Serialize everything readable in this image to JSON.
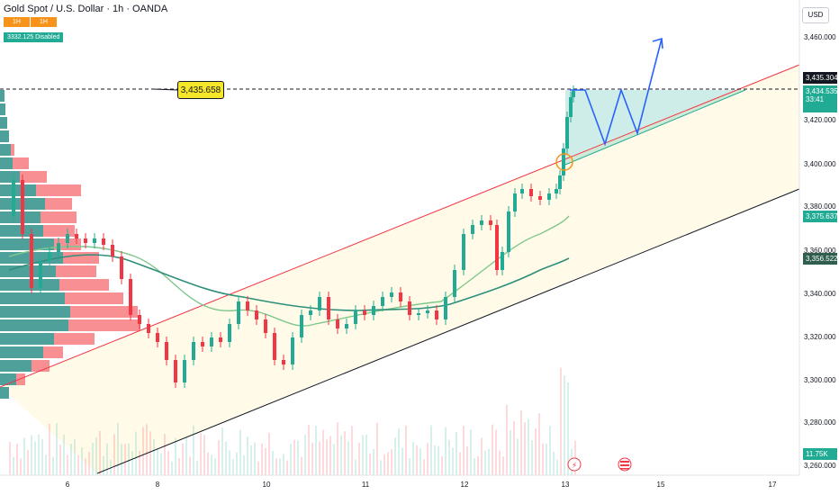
{
  "header": {
    "title": "Gold Spot / U.S. Dollar · 1h · OANDA",
    "badge_left": "1H",
    "badge_right": "1H",
    "info_line": "3332.125 Disabled"
  },
  "price_axis": {
    "currency": "USD",
    "labels": [
      "3,460.000",
      "3,420.000",
      "3,400.000",
      "3,380.000",
      "3,360.000",
      "3,340.000",
      "3,320.000",
      "3,300.000",
      "3,280.000",
      "3,260.000"
    ],
    "current_price": "3,435.304",
    "current_price_sub": "3,434.535",
    "countdown": "33:41",
    "tag_green": "3,375.637",
    "tag_dark": "3,356.522",
    "tag_volume": "11.75K",
    "colors": {
      "current": "#131722",
      "green": "#22ab94",
      "dark": "#2f5e4f",
      "volume": "#22ab94"
    }
  },
  "time_axis": {
    "labels": [
      "6",
      "8",
      "10",
      "11",
      "12",
      "13",
      "15",
      "17"
    ]
  },
  "annotations": {
    "target_label": "3,435.658"
  },
  "chart_data": {
    "type": "candlestick",
    "symbol": "Gold Spot / U.S. Dollar",
    "interval": "1h",
    "source": "OANDA",
    "y_range": [
      3255,
      3470
    ],
    "target_price": 3435.658,
    "current_price": 3435.304,
    "moving_average_values": [
      3375.637,
      3356.522
    ],
    "volume_last": "11.75K",
    "colors": {
      "up": "#22ab94",
      "down": "#f23645",
      "channel_upper": "#f23645",
      "channel_lower": "#131722",
      "forecast": "#2962ff",
      "ma_fast": "#7fc88d",
      "ma_slow": "#2f8f7a"
    }
  }
}
